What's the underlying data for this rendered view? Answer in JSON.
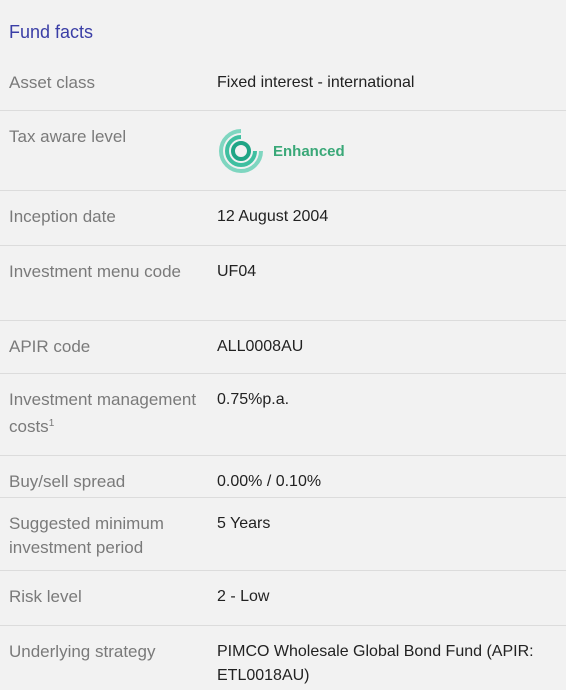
{
  "title": "Fund facts",
  "rows": [
    {
      "label": "Asset class",
      "value": "Fixed interest - international"
    },
    {
      "label": "Tax aware level",
      "badge": "Enhanced"
    },
    {
      "label": "Inception date",
      "value": "12 August 2004"
    },
    {
      "label": "Investment menu code",
      "value": "UF04"
    },
    {
      "label": "APIR code",
      "value": "ALL0008AU"
    },
    {
      "label": "Investment management costs",
      "footnote": "1",
      "value": "0.75%p.a."
    },
    {
      "label": "Buy/sell spread",
      "value": "0.00% / 0.10%"
    },
    {
      "label": "Suggested minimum investment period",
      "value": "5 Years"
    },
    {
      "label": "Risk level",
      "value": "2 - Low"
    },
    {
      "label": "Underlying strategy",
      "value": "PIMCO Wholesale Global Bond Fund (APIR: ETL0018AU)"
    }
  ]
}
